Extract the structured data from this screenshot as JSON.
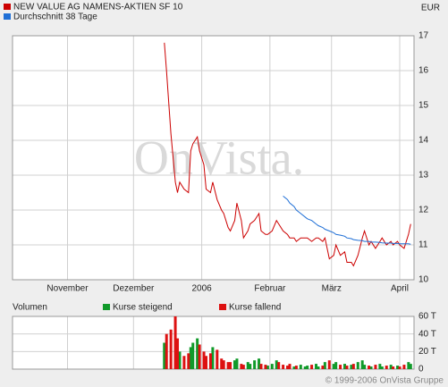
{
  "chart_data": [
    {
      "type": "line",
      "currency": "EUR",
      "x": [
        44,
        45,
        47,
        49,
        50,
        51,
        53,
        55,
        56,
        57,
        59,
        60,
        62,
        63,
        65,
        66,
        68,
        70,
        71,
        73,
        74,
        76,
        77,
        79,
        80,
        82,
        83,
        85,
        87,
        88,
        90,
        91,
        93,
        95,
        96,
        98,
        100,
        101,
        103,
        104,
        106,
        108,
        109,
        111,
        113,
        114,
        116,
        117,
        119,
        121,
        122,
        124,
        126,
        127,
        129,
        130,
        132,
        134,
        135,
        137,
        138,
        140,
        142,
        143,
        145,
        147,
        148,
        150,
        151,
        153,
        155,
        156
      ],
      "series": [
        {
          "name": "NEW VALUE AG NAMENS-AKTIEN SF 10",
          "color": "#cc0000",
          "values": [
            16.8,
            16.0,
            14.2,
            12.8,
            12.5,
            12.8,
            12.6,
            12.5,
            13.7,
            13.9,
            14.1,
            13.7,
            13.3,
            12.6,
            12.5,
            12.8,
            12.3,
            12.0,
            11.9,
            11.5,
            11.4,
            11.7,
            12.2,
            11.7,
            11.2,
            11.4,
            11.6,
            11.7,
            11.9,
            11.4,
            11.3,
            11.3,
            11.4,
            11.7,
            11.6,
            11.4,
            11.3,
            11.2,
            11.2,
            11.1,
            11.2,
            11.2,
            11.2,
            11.1,
            11.2,
            11.2,
            11.1,
            11.2,
            10.6,
            10.7,
            11.0,
            10.7,
            10.8,
            10.5,
            10.5,
            10.4,
            10.7,
            11.2,
            11.4,
            11.0,
            11.1,
            10.9,
            11.1,
            11.2,
            11.0,
            11.1,
            11.0,
            11.1,
            11.0,
            10.9,
            11.3,
            11.6
          ]
        },
        {
          "name": "Durchschnitt 38 Tage",
          "color": "#1f6fd6",
          "values": [
            null,
            null,
            null,
            null,
            null,
            null,
            null,
            null,
            null,
            null,
            null,
            null,
            null,
            null,
            null,
            null,
            null,
            null,
            null,
            null,
            null,
            null,
            null,
            null,
            null,
            null,
            null,
            null,
            null,
            null,
            null,
            null,
            null,
            null,
            null,
            12.4,
            12.3,
            12.2,
            12.1,
            12.0,
            11.9,
            11.8,
            11.75,
            11.7,
            11.6,
            11.55,
            11.5,
            11.45,
            11.4,
            11.35,
            11.3,
            11.28,
            11.25,
            11.2,
            11.18,
            11.15,
            11.13,
            11.12,
            11.1,
            11.1,
            11.08,
            11.08,
            11.07,
            11.06,
            11.05,
            11.05,
            11.04,
            11.04,
            11.03,
            11.03,
            11.03,
            11.02
          ]
        }
      ],
      "xlim": [
        -25,
        157.5
      ],
      "xticks": [
        {
          "value": 0,
          "label": "November"
        },
        {
          "value": 30,
          "label": "Dezember"
        },
        {
          "value": 61,
          "label": "2006"
        },
        {
          "value": 92,
          "label": "Februar"
        },
        {
          "value": 120,
          "label": "März"
        },
        {
          "value": 151,
          "label": "April"
        }
      ],
      "ylim": [
        10,
        17
      ],
      "yticks": [
        10,
        11,
        12,
        13,
        14,
        15,
        16,
        17
      ],
      "grid": true
    },
    {
      "type": "bar",
      "title": "Volumen",
      "x": [
        44,
        45,
        47,
        49,
        50,
        51,
        53,
        55,
        56,
        57,
        59,
        60,
        62,
        63,
        65,
        66,
        68,
        70,
        71,
        73,
        74,
        76,
        77,
        79,
        80,
        82,
        83,
        85,
        87,
        88,
        90,
        91,
        93,
        95,
        96,
        98,
        100,
        101,
        103,
        104,
        106,
        108,
        109,
        111,
        113,
        114,
        116,
        117,
        119,
        121,
        122,
        124,
        126,
        127,
        129,
        130,
        132,
        134,
        135,
        137,
        138,
        140,
        142,
        143,
        145,
        147,
        148,
        150,
        151,
        153,
        155,
        156
      ],
      "series": [
        {
          "name": "Kurse steigend",
          "color": "#119a2a",
          "values": [
            30,
            null,
            null,
            null,
            null,
            20,
            null,
            null,
            25,
            30,
            35,
            null,
            null,
            null,
            null,
            25,
            null,
            null,
            null,
            null,
            null,
            10,
            12,
            null,
            null,
            8,
            6,
            10,
            12,
            null,
            null,
            4,
            6,
            10,
            null,
            null,
            null,
            null,
            3,
            null,
            5,
            3,
            4,
            null,
            6,
            3,
            null,
            8,
            null,
            6,
            8,
            null,
            6,
            null,
            5,
            null,
            8,
            10,
            5,
            null,
            3,
            null,
            6,
            3,
            null,
            5,
            null,
            4,
            null,
            null,
            8,
            6
          ]
        },
        {
          "name": "Kurse fallend",
          "color": "#dd1111",
          "values": [
            null,
            40,
            45,
            60,
            35,
            null,
            15,
            18,
            null,
            null,
            null,
            28,
            20,
            15,
            18,
            null,
            22,
            12,
            10,
            8,
            8,
            null,
            null,
            6,
            5,
            null,
            null,
            null,
            null,
            6,
            5,
            null,
            null,
            null,
            8,
            5,
            4,
            6,
            null,
            4,
            null,
            null,
            null,
            5,
            null,
            null,
            4,
            null,
            10,
            null,
            null,
            5,
            null,
            4,
            null,
            6,
            null,
            null,
            null,
            4,
            null,
            5,
            null,
            null,
            4,
            null,
            3,
            null,
            3,
            5,
            null,
            null
          ]
        }
      ],
      "xlim": [
        -25,
        157.5
      ],
      "ylim": [
        0,
        60
      ],
      "yticks": [
        {
          "value": 0,
          "label": "0"
        },
        {
          "value": 20,
          "label": "20 T"
        },
        {
          "value": 40,
          "label": "40 T"
        },
        {
          "value": 60,
          "label": "60 T"
        }
      ],
      "grid": true
    }
  ],
  "watermark": "OnVista.",
  "copyright": "© 1999-2006 OnVista Gruppe"
}
